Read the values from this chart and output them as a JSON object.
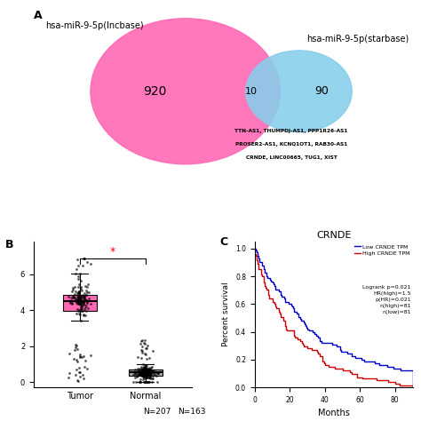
{
  "panel_a_label": "A",
  "panel_b_label": "B",
  "panel_c_label": "C",
  "venn_left_label": "hsa-miR-9-5p(lncbase)",
  "venn_right_label": "hsa-miR-9-5p(starbase)",
  "venn_left_num": "920",
  "venn_intersect_num": "10",
  "venn_right_num": "90",
  "venn_left_color": "#FF69B4",
  "venn_right_color": "#87CEEB",
  "venn_annot_line1": "TTN-AS1, THUMPDJ-AS1, PPP1R26-AS1",
  "venn_annot_line2": "PROSER2-AS1, KCNQ1OT1, RAB30-AS1",
  "venn_annot_line3": "CRNDE, LINC00665, TUG1, XIST",
  "box_tumor_color": "#FF69B4",
  "box_normal_color": "#A9A9A9",
  "box_tumor_label": "Tumor",
  "box_normal_label": "Normal",
  "box_n_tumor": "N=163",
  "box_n_normal": "N=207",
  "km_title": "CRNDE",
  "km_xlabel": "Months",
  "km_ylabel": "Percent survival",
  "km_low_color": "#0000CD",
  "km_high_color": "#CC0000",
  "km_legend_lines": [
    "Low CRNDE TPM",
    "High CRNDE TPM",
    "Logrank p=0.021",
    "HR(high)=1.5",
    "p(HR)=0.021",
    "n(high)=81",
    "n(low)=81"
  ]
}
